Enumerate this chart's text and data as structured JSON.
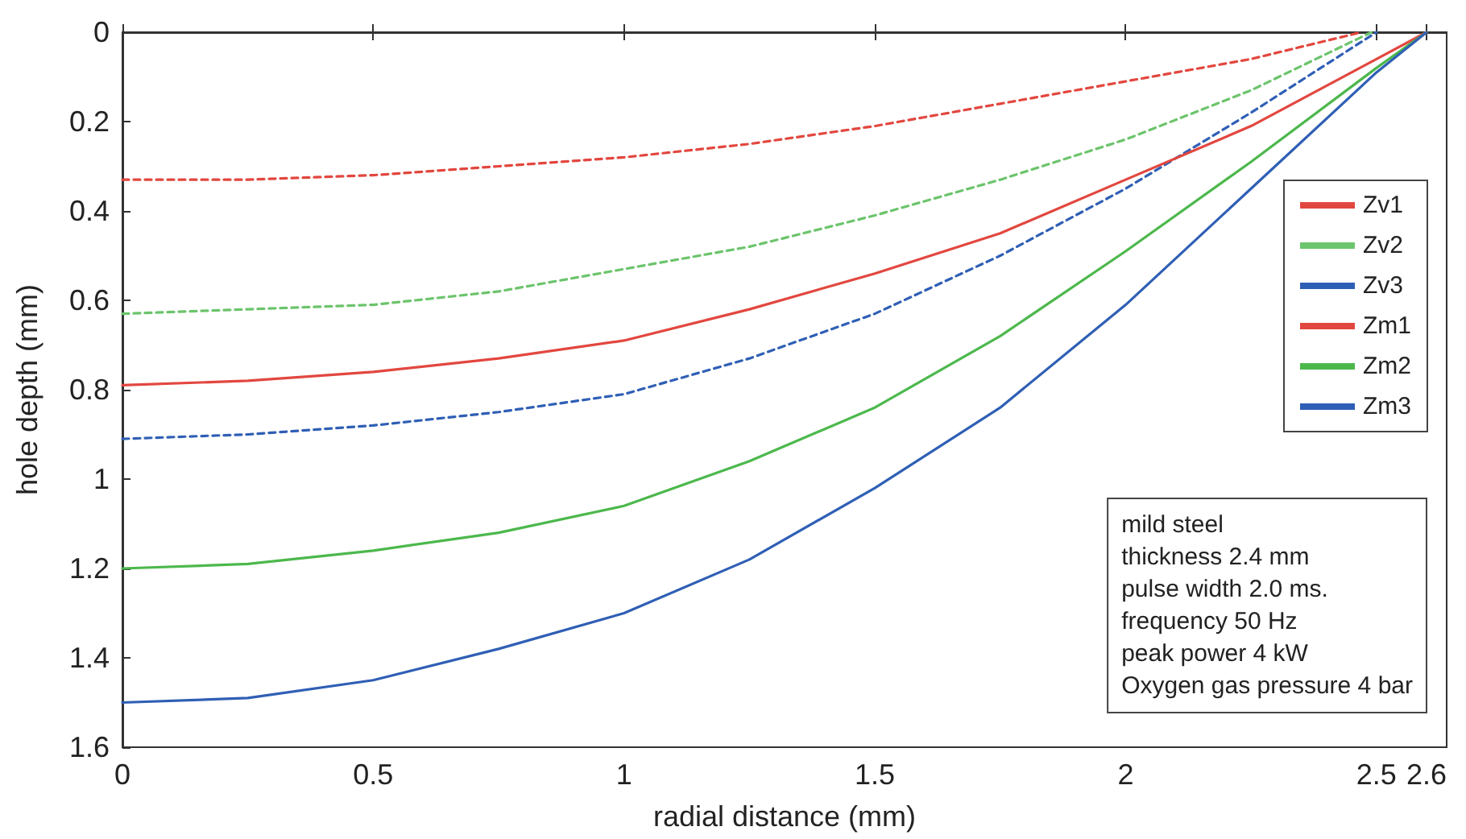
{
  "chart_data": {
    "type": "line",
    "xlabel": "radial distance (mm)",
    "ylabel": "hole depth (mm)",
    "xlim": [
      0,
      2.64
    ],
    "xticks": [
      0,
      0.5,
      1,
      1.5,
      2,
      2.5,
      2.6
    ],
    "ylim": [
      1.6,
      0
    ],
    "yticks": [
      0,
      0.2,
      0.4,
      0.6,
      0.8,
      1,
      1.2,
      1.4,
      1.6
    ],
    "grid": false,
    "legend": "top right",
    "marker": "none",
    "annotations": [
      "mild steel",
      "thickness 2.4 mm",
      "pulse width 2.0 ms.",
      "frequency 50 Hz",
      "peak power 4 kW",
      "Oxygen gas pressure 4 bar"
    ],
    "series": [
      {
        "name": "Zv1",
        "color": "#e2473f",
        "line_style": "dashed",
        "x": [
          0,
          0.25,
          0.5,
          0.75,
          1,
          1.25,
          1.5,
          1.75,
          2,
          2.25,
          2.47
        ],
        "values": [
          0.33,
          0.33,
          0.32,
          0.3,
          0.28,
          0.25,
          0.21,
          0.16,
          0.11,
          0.06,
          0
        ]
      },
      {
        "name": "Zv2",
        "color": "#6cc46c",
        "line_style": "dashed",
        "x": [
          0,
          0.25,
          0.5,
          0.75,
          1,
          1.25,
          1.5,
          1.75,
          2,
          2.25,
          2.49
        ],
        "values": [
          0.63,
          0.62,
          0.61,
          0.58,
          0.53,
          0.48,
          0.41,
          0.33,
          0.24,
          0.13,
          0
        ]
      },
      {
        "name": "Zv3",
        "color": "#2f5fb5",
        "line_style": "dashed",
        "x": [
          0,
          0.25,
          0.5,
          0.75,
          1,
          1.25,
          1.5,
          1.75,
          2,
          2.25,
          2.5
        ],
        "values": [
          0.91,
          0.9,
          0.88,
          0.85,
          0.81,
          0.73,
          0.63,
          0.5,
          0.35,
          0.18,
          0
        ]
      },
      {
        "name": "Zm1",
        "color": "#e2473f",
        "line_style": "solid",
        "x": [
          0,
          0.25,
          0.5,
          0.75,
          1,
          1.25,
          1.5,
          1.75,
          2,
          2.25,
          2.5,
          2.6
        ],
        "values": [
          0.79,
          0.78,
          0.76,
          0.73,
          0.69,
          0.62,
          0.54,
          0.45,
          0.33,
          0.21,
          0.06,
          0
        ]
      },
      {
        "name": "Zm2",
        "color": "#4cb84c",
        "line_style": "solid",
        "x": [
          0,
          0.25,
          0.5,
          0.75,
          1,
          1.25,
          1.5,
          1.75,
          2,
          2.25,
          2.5,
          2.6
        ],
        "values": [
          1.2,
          1.19,
          1.16,
          1.12,
          1.06,
          0.96,
          0.84,
          0.68,
          0.49,
          0.29,
          0.08,
          0
        ]
      },
      {
        "name": "Zm3",
        "color": "#2f5fb5",
        "line_style": "solid",
        "x": [
          0,
          0.25,
          0.5,
          0.75,
          1,
          1.25,
          1.5,
          1.75,
          2,
          2.25,
          2.5,
          2.6
        ],
        "values": [
          1.5,
          1.49,
          1.45,
          1.38,
          1.3,
          1.18,
          1.02,
          0.84,
          0.61,
          0.35,
          0.09,
          0
        ]
      }
    ]
  }
}
